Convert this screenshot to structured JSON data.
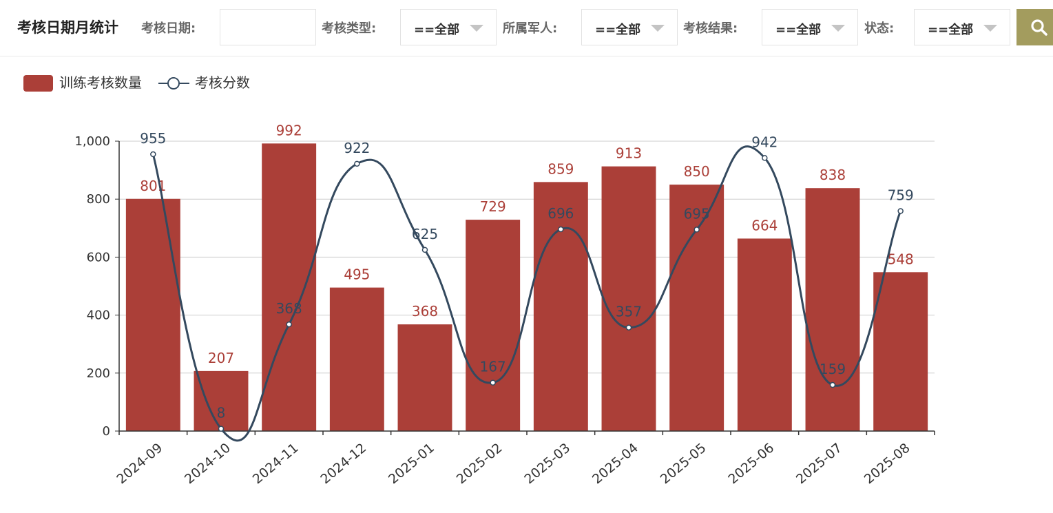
{
  "header": {
    "title": "考核日期月统计",
    "filters": {
      "date_label": "考核日期:",
      "date_value": "",
      "type_label": "考核类型:",
      "type_value": "==全部",
      "soldier_label": "所属军人:",
      "soldier_value": "==全部",
      "result_label": "考核结果:",
      "result_value": "==全部",
      "status_label": "状态:",
      "status_value": "==全部"
    },
    "search_icon": "search-icon"
  },
  "legend": {
    "bar_label": "训练考核数量",
    "line_label": "考核分数"
  },
  "colors": {
    "bar": "#ab3f38",
    "line": "#34495e",
    "search_button": "#a39c5e",
    "axis": "#333333",
    "grid": "#cccccc"
  },
  "chart_data": {
    "type": "bar",
    "categories": [
      "2024-09",
      "2024-10",
      "2024-11",
      "2024-12",
      "2025-01",
      "2025-02",
      "2025-03",
      "2025-04",
      "2025-05",
      "2025-06",
      "2025-07",
      "2025-08"
    ],
    "series": [
      {
        "name": "训练考核数量",
        "type": "bar",
        "values": [
          801,
          207,
          992,
          495,
          368,
          729,
          859,
          913,
          850,
          664,
          838,
          548
        ]
      },
      {
        "name": "考核分数",
        "type": "line",
        "smooth": true,
        "values": [
          955,
          8,
          368,
          922,
          625,
          167,
          696,
          357,
          695,
          942,
          159,
          759
        ]
      }
    ],
    "ylim": [
      0,
      1000
    ],
    "yticks": [
      0,
      200,
      400,
      600,
      800,
      1000
    ],
    "ytick_labels": [
      "0",
      "200",
      "400",
      "600",
      "800",
      "1,000"
    ],
    "grid": true,
    "legend_position": "top-left"
  }
}
